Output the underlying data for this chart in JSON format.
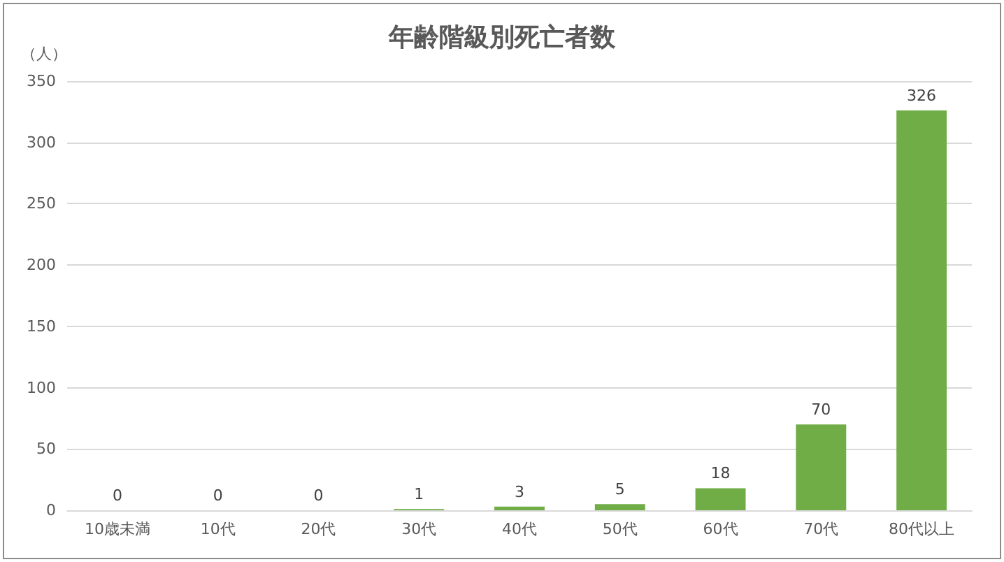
{
  "chart_data": {
    "type": "bar",
    "title": "年齢階級別死亡者数",
    "ylabel": "（人）",
    "categories": [
      "10歳未満",
      "10代",
      "20代",
      "30代",
      "40代",
      "50代",
      "60代",
      "70代",
      "80代以上"
    ],
    "values": [
      0,
      0,
      0,
      1,
      3,
      5,
      18,
      70,
      326
    ],
    "color": "#70ad47",
    "ylim": [
      0,
      350
    ],
    "yticks": [
      0,
      50,
      100,
      150,
      200,
      250,
      300,
      350
    ],
    "grid": "y",
    "data_labels": true
  }
}
